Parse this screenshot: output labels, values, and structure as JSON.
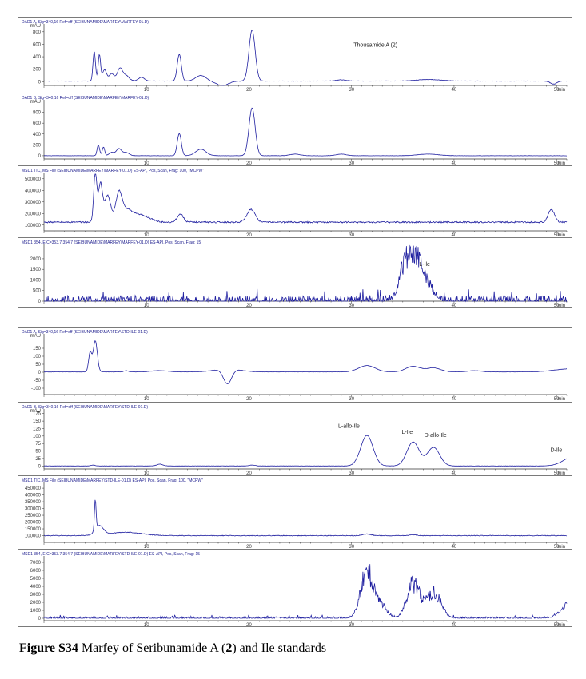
{
  "figure": {
    "caption_label": "Figure S34",
    "caption_text_before": " Marfey of Seribunamide A (",
    "caption_compound_number": "2",
    "caption_text_after": ") and Ile standards"
  },
  "colors": {
    "trace": "#1f1fa0",
    "frame": "#7a7a7a",
    "background": "#ffffff"
  },
  "chart_data": [
    {
      "type": "line",
      "group": "top",
      "header": "DAD1 A, Sig=340,16 Ref=off (SEIBUNAMIDE\\MARFEY\\MARFEY-01.D)",
      "xlim": [
        0,
        51
      ],
      "xticks": [
        10,
        20,
        30,
        40,
        50
      ],
      "x_unit": "min",
      "ylim": [
        -60,
        900
      ],
      "yticks": [
        0,
        200,
        400,
        600,
        800
      ],
      "y_unit": "mAU",
      "baseline": 10,
      "noise": 3,
      "peaks": [
        [
          4.9,
          480,
          0.12
        ],
        [
          5.4,
          420,
          0.12
        ],
        [
          5.9,
          180,
          0.2
        ],
        [
          6.6,
          120,
          0.25
        ],
        [
          7.4,
          200,
          0.25
        ],
        [
          8.0,
          90,
          0.3
        ],
        [
          9.5,
          60,
          0.3
        ],
        [
          13.2,
          430,
          0.2
        ],
        [
          15.3,
          90,
          0.5
        ],
        [
          17.4,
          -70,
          0.6
        ],
        [
          20.3,
          820,
          0.3
        ],
        [
          29.0,
          20,
          0.5
        ],
        [
          37.5,
          25,
          1.2
        ],
        [
          49.7,
          -50,
          0.3
        ]
      ],
      "annotations": [
        {
          "x": 30.2,
          "y": 560,
          "text": "Thousamide A (2)"
        }
      ]
    },
    {
      "type": "line",
      "group": "top",
      "header": "DAD1 B, Sig=340,16 Ref=off (SEIBUNAMIDE\\MARFEY\\MARFEY-01.D)",
      "xlim": [
        0,
        51
      ],
      "xticks": [
        10,
        20,
        30,
        40,
        50
      ],
      "x_unit": "min",
      "ylim": [
        -60,
        1000
      ],
      "yticks": [
        0,
        200,
        400,
        600,
        800
      ],
      "y_unit": "mAU",
      "baseline": 0,
      "noise": 2,
      "peaks": [
        [
          5.3,
          200,
          0.12
        ],
        [
          5.8,
          160,
          0.12
        ],
        [
          6.6,
          60,
          0.25
        ],
        [
          7.3,
          130,
          0.25
        ],
        [
          8.0,
          60,
          0.3
        ],
        [
          13.2,
          410,
          0.2
        ],
        [
          15.3,
          120,
          0.5
        ],
        [
          20.3,
          880,
          0.3
        ],
        [
          24.5,
          30,
          0.5
        ],
        [
          29.0,
          30,
          0.5
        ],
        [
          37.5,
          30,
          1.0
        ]
      ],
      "annotations": []
    },
    {
      "type": "line",
      "group": "top",
      "header": "MSD1 TIC, MS File (SEIBUNAMIDE\\MARFEY\\MARFEY-01.D) ES-API, Pos, Scan, Frag: 100, \"MCPW\"",
      "xlim": [
        0,
        51
      ],
      "xticks": [
        10,
        20,
        30,
        40,
        50
      ],
      "x_unit": "min",
      "ylim": [
        50000,
        540000
      ],
      "yticks": [
        100000,
        200000,
        300000,
        400000,
        500000
      ],
      "y_unit": "",
      "baseline": 125000,
      "noise": 6000,
      "peaks": [
        [
          5.0,
          430000,
          0.15
        ],
        [
          5.5,
          330000,
          0.2
        ],
        [
          6.2,
          230000,
          0.3
        ],
        [
          7.3,
          220000,
          0.3
        ],
        [
          8.0,
          100000,
          0.6
        ],
        [
          9.5,
          60000,
          0.8
        ],
        [
          13.3,
          70000,
          0.3
        ],
        [
          20.2,
          110000,
          0.4
        ],
        [
          49.5,
          110000,
          0.3
        ]
      ],
      "annotations": []
    },
    {
      "type": "line",
      "group": "top",
      "header": "MSD1 354, EIC=353.7:354.7 (SEIBUNAMIDE\\MARFEY\\MARFEY-01.D) ES-API, Pos, Scan, Frag: 15",
      "xlim": [
        0,
        51
      ],
      "xticks": [
        10,
        20,
        30,
        40,
        50
      ],
      "x_unit": "min",
      "ylim": [
        0,
        2600
      ],
      "yticks": [
        0,
        500,
        1000,
        1500,
        2000
      ],
      "y_unit": "",
      "baseline": 0,
      "noise": 0,
      "spiky": 260,
      "peaks": [
        [
          35.0,
          1200,
          0.5
        ],
        [
          35.8,
          1900,
          0.6
        ],
        [
          36.6,
          1300,
          0.5
        ],
        [
          37.6,
          700,
          0.5
        ]
      ],
      "annotations": [
        {
          "x": 36.6,
          "y": 1650,
          "text": "L-Ile"
        }
      ]
    },
    {
      "type": "line",
      "group": "bottom",
      "header": "DAD1 A, Sig=340,16 Ref=off (SEIBUNAMIDE\\MARFEY\\STD-ILE-01.D)",
      "xlim": [
        0,
        51
      ],
      "xticks": [
        10,
        20,
        30,
        40,
        50
      ],
      "x_unit": "min",
      "ylim": [
        -140,
        230
      ],
      "yticks": [
        -100,
        -50,
        0,
        50,
        100,
        150
      ],
      "y_unit": "mAU",
      "baseline": 2,
      "noise": 0.8,
      "peaks": [
        [
          4.5,
          120,
          0.15
        ],
        [
          5.0,
          195,
          0.2
        ],
        [
          8.0,
          8,
          0.2
        ],
        [
          11.3,
          8,
          0.8
        ],
        [
          17.9,
          -95,
          0.4
        ],
        [
          17.9,
          20,
          1.2
        ],
        [
          31.5,
          40,
          0.8
        ],
        [
          36.0,
          35,
          0.7
        ],
        [
          38.0,
          25,
          0.7
        ],
        [
          42.0,
          8,
          0.6
        ],
        [
          51.5,
          20,
          1.6
        ],
        [
          54.5,
          55,
          0.1
        ],
        [
          55.2,
          40,
          0.1
        ],
        [
          55.9,
          25,
          0.1
        ],
        [
          56.7,
          45,
          0.1
        ],
        [
          57.5,
          80,
          0.08
        ],
        [
          58.0,
          65,
          0.08
        ],
        [
          58.5,
          -50,
          0.3
        ],
        [
          59.5,
          30,
          0.3
        ]
      ],
      "annotations": []
    },
    {
      "type": "line",
      "group": "bottom",
      "header": "DAD1 B, Sig=340,16 Ref=off (SEIBUNAMIDE\\MARFEY\\STD-ILE-01.D)",
      "xlim": [
        0,
        51
      ],
      "xticks": [
        10,
        20,
        30,
        40,
        50
      ],
      "x_unit": "min",
      "ylim": [
        -10,
        185
      ],
      "yticks": [
        0,
        25,
        50,
        75,
        100,
        125,
        150,
        175
      ],
      "y_unit": "mAU",
      "baseline": 0,
      "noise": 0.4,
      "peaks": [
        [
          4.8,
          3,
          0.2
        ],
        [
          11.3,
          6,
          0.3
        ],
        [
          20.3,
          3,
          0.3
        ],
        [
          31.5,
          102,
          0.6
        ],
        [
          36.0,
          80,
          0.6
        ],
        [
          38.0,
          62,
          0.6
        ],
        [
          51.5,
          28,
          0.9
        ],
        [
          54.5,
          95,
          0.08
        ],
        [
          55.2,
          60,
          0.08
        ],
        [
          55.9,
          70,
          0.08
        ],
        [
          56.7,
          85,
          0.08
        ],
        [
          57.5,
          165,
          0.08
        ],
        [
          58.0,
          130,
          0.08
        ],
        [
          58.6,
          50,
          0.08
        ]
      ],
      "annotations": [
        {
          "x": 28.7,
          "y": 128,
          "text": "L-allo-Ile"
        },
        {
          "x": 34.9,
          "y": 107,
          "text": "L-Ile"
        },
        {
          "x": 37.1,
          "y": 97,
          "text": "D-allo-Ile"
        },
        {
          "x": 49.4,
          "y": 47,
          "text": "D-Ile"
        }
      ]
    },
    {
      "type": "line",
      "group": "bottom",
      "header": "MSD1 TIC, MS File (SEIBUNAMIDE\\MARFEY\\STD-ILE-01.D) ES-API, Pos, Scan, Frag: 100, \"MCPW\"",
      "xlim": [
        0,
        51
      ],
      "xticks": [
        10,
        20,
        30,
        40,
        50
      ],
      "x_unit": "min",
      "ylim": [
        50000,
        480000
      ],
      "yticks": [
        100000,
        150000,
        200000,
        250000,
        300000,
        350000,
        400000,
        450000
      ],
      "y_unit": "",
      "baseline": 100000,
      "noise": 2500,
      "peaks": [
        [
          5.0,
          220000,
          0.08
        ],
        [
          5.4,
          70000,
          0.4
        ],
        [
          8.0,
          25000,
          1.5
        ],
        [
          31.5,
          12000,
          0.4
        ],
        [
          36.0,
          6000,
          0.4
        ],
        [
          55.0,
          50000,
          0.5
        ],
        [
          57.4,
          360000,
          0.1
        ],
        [
          58.0,
          240000,
          0.15
        ],
        [
          58.8,
          100000,
          0.4
        ],
        [
          60.0,
          80000,
          1.0
        ]
      ],
      "annotations": []
    },
    {
      "type": "line",
      "group": "bottom",
      "header": "MSD1 354, EIC=353.7:354.7 (SEIBUNAMIDE\\MARFEY\\STD-ILE-01.D) ES-API, Pos, Scan, Frag: 15",
      "xlim": [
        0,
        51
      ],
      "xticks": [
        10,
        20,
        30,
        40,
        50
      ],
      "x_unit": "min",
      "ylim": [
        -300,
        7600
      ],
      "yticks": [
        0,
        1000,
        2000,
        3000,
        4000,
        5000,
        6000,
        7000
      ],
      "y_unit": "",
      "baseline": 0,
      "noise": 0,
      "spiky": 200,
      "peaks": [
        [
          31.5,
          6600,
          0.6
        ],
        [
          32.8,
          2000,
          0.6
        ],
        [
          36.0,
          5000,
          0.6
        ],
        [
          38.0,
          3700,
          0.7
        ],
        [
          51.5,
          2200,
          0.9
        ]
      ],
      "annotations": []
    }
  ]
}
